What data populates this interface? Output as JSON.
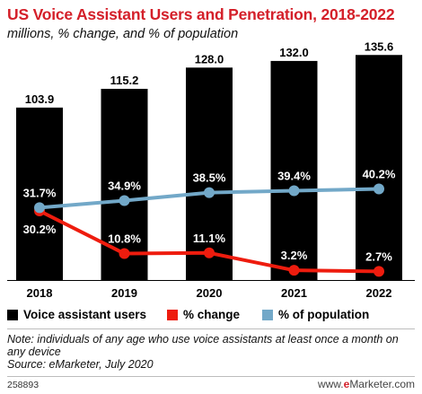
{
  "header": {
    "title": "US Voice Assistant Users and Penetration, 2018-2022",
    "subtitle": "millions, % change, and % of population"
  },
  "chart_data": {
    "type": "bar",
    "categories": [
      "2018",
      "2019",
      "2020",
      "2021",
      "2022"
    ],
    "series": [
      {
        "name": "Voice assistant users",
        "type": "bar",
        "color": "#000000",
        "values": [
          103.9,
          115.2,
          128.0,
          132.0,
          135.6
        ],
        "labels": [
          "103.9",
          "115.2",
          "128.0",
          "132.0",
          "135.6"
        ]
      },
      {
        "name": "% change",
        "type": "line",
        "color": "#ee1c0e",
        "values": [
          30.2,
          10.8,
          11.1,
          3.2,
          2.7
        ],
        "labels": [
          "30.2%",
          "10.8%",
          "11.1%",
          "3.2%",
          "2.7%"
        ]
      },
      {
        "name": "% of population",
        "type": "line",
        "color": "#72a8c8",
        "values": [
          31.7,
          34.9,
          38.5,
          39.4,
          40.2
        ],
        "labels": [
          "31.7%",
          "34.9%",
          "38.5%",
          "39.4%",
          "40.2%"
        ]
      }
    ],
    "legend_position": "bottom",
    "grid": false
  },
  "legend": {
    "bars": "Voice assistant users",
    "change": "% change",
    "population": "% of population"
  },
  "note": {
    "line1": "Note: individuals of any age who use voice assistants at least once a month on any device",
    "source": "Source: eMarketer, July 2020"
  },
  "footer": {
    "id": "258893",
    "site_prefix": "www.",
    "site_brand": "e",
    "site_suffix": "Marketer.com"
  }
}
